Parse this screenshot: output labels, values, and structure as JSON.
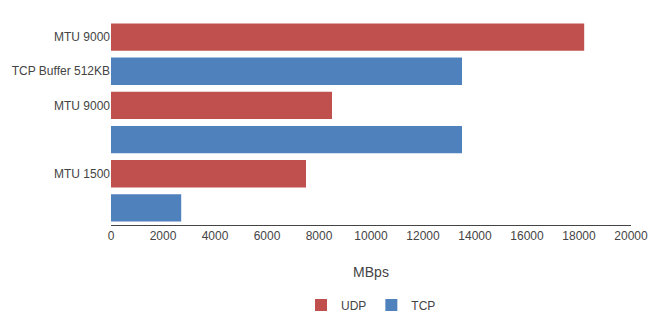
{
  "chart_data": {
    "type": "bar",
    "orientation": "horizontal",
    "xlabel": "MBps",
    "categories": [
      "MTU 9000",
      "TCP Buffer 512KB",
      "MTU 9000",
      null,
      "MTU 1500",
      null
    ],
    "series": [
      {
        "name": "UDP",
        "color": "#c0504d",
        "values": [
          18200,
          null,
          8500,
          null,
          7500,
          null
        ]
      },
      {
        "name": "TCP",
        "color": "#4f81bd",
        "values": [
          null,
          13500,
          null,
          13500,
          null,
          2700
        ]
      }
    ],
    "xlim": [
      0,
      20000
    ],
    "xticks": [
      0,
      2000,
      4000,
      6000,
      8000,
      10000,
      12000,
      14000,
      16000,
      18000,
      20000
    ],
    "grid": false,
    "legend": "bottom"
  }
}
